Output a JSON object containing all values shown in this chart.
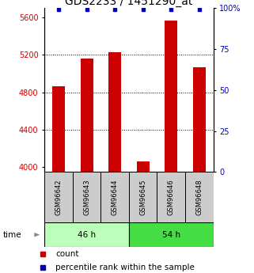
{
  "title": "GDS2233 / 1451290_at",
  "samples": [
    "GSM96642",
    "GSM96643",
    "GSM96644",
    "GSM96645",
    "GSM96646",
    "GSM96648"
  ],
  "counts": [
    4870,
    5160,
    5230,
    4060,
    5570,
    5070
  ],
  "percentiles": [
    99,
    99,
    99,
    99,
    99,
    99
  ],
  "group_labels": [
    "46 h",
    "54 h"
  ],
  "group_split": 3,
  "group_colors": [
    "#bbffbb",
    "#44dd44"
  ],
  "ylim_left": [
    3950,
    5700
  ],
  "ylim_right": [
    0,
    100
  ],
  "yticks_left": [
    4000,
    4400,
    4800,
    5200,
    5600
  ],
  "yticks_right": [
    0,
    25,
    50,
    75,
    100
  ],
  "bar_color": "#cc0000",
  "dot_color": "#0000bb",
  "bar_width": 0.45,
  "title_fontsize": 10,
  "tick_fontsize": 7,
  "label_fontsize": 7.5,
  "sample_box_color": "#cccccc",
  "legend_square_size": 5
}
